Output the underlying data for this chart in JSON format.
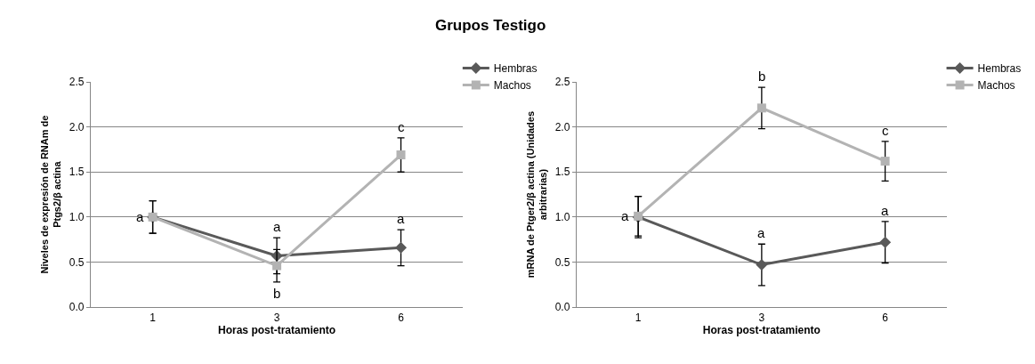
{
  "chart_data": [
    {
      "type": "line",
      "title": "Grupos Testigo",
      "xlabel": "Horas post-tratamiento",
      "ylabel": "Niveles de expresión de RNAm de Ptgs2/β actina",
      "categories": [
        "1",
        "3",
        "6"
      ],
      "series": [
        {
          "name": "Hembras",
          "color": "#595959",
          "marker": "diamond",
          "values": [
            1.0,
            0.57,
            0.66
          ],
          "errors": [
            0.18,
            0.2,
            0.2
          ]
        },
        {
          "name": "Machos",
          "color": "#b3b3b3",
          "marker": "square",
          "values": [
            1.0,
            0.46,
            1.69
          ],
          "errors": [
            0.18,
            0.18,
            0.19
          ]
        }
      ],
      "ylim": [
        0,
        2.5
      ],
      "yticks": [
        {
          "value": 0,
          "label": "0.0"
        },
        {
          "value": 0.5,
          "label": "0.5"
        },
        {
          "value": 1,
          "label": "1.0"
        },
        {
          "value": 1.5,
          "label": "1.5"
        },
        {
          "value": 2,
          "label": "2.0"
        },
        {
          "value": 2.5,
          "label": "2.5"
        }
      ],
      "grid": "y",
      "legend": "top right",
      "annotations": [
        {
          "text": "a",
          "x": "1",
          "y": 1.0
        },
        {
          "text": "a",
          "x": "3",
          "y": 0.77
        },
        {
          "text": "b",
          "x": "3",
          "y": 0.28
        },
        {
          "text": "c",
          "x": "6",
          "y": 1.88
        },
        {
          "text": "a",
          "x": "6",
          "y": 0.86
        }
      ]
    },
    {
      "type": "line",
      "xlabel": "Horas post-tratamiento",
      "ylabel": "mRNA de Ptger2/β actina (Unidades arbitrarias)",
      "categories": [
        "1",
        "3",
        "6"
      ],
      "series": [
        {
          "name": "Hembras",
          "color": "#595959",
          "marker": "diamond",
          "values": [
            1.0,
            0.47,
            0.72
          ],
          "errors": [
            0.23,
            0.23,
            0.23
          ]
        },
        {
          "name": "Machos",
          "color": "#b3b3b3",
          "marker": "square",
          "values": [
            1.01,
            2.21,
            1.62
          ],
          "errors": [
            0.22,
            0.23,
            0.22
          ]
        }
      ],
      "ylim": [
        0,
        2.5
      ],
      "yticks": [
        {
          "value": 0,
          "label": "0.0"
        },
        {
          "value": 0.5,
          "label": "0.5"
        },
        {
          "value": 1,
          "label": "1.0"
        },
        {
          "value": 1.5,
          "label": "1.5"
        },
        {
          "value": 2,
          "label": "2.0"
        },
        {
          "value": 2.5,
          "label": "2.5"
        }
      ],
      "grid": "y",
      "legend": "top right",
      "annotations": [
        {
          "text": "a",
          "x": "1",
          "y": 1.01
        },
        {
          "text": "b",
          "x": "3",
          "y": 2.44
        },
        {
          "text": "a",
          "x": "3",
          "y": 0.7
        },
        {
          "text": "c",
          "x": "6",
          "y": 1.84
        },
        {
          "text": "a",
          "x": "6",
          "y": 0.95
        }
      ]
    }
  ]
}
